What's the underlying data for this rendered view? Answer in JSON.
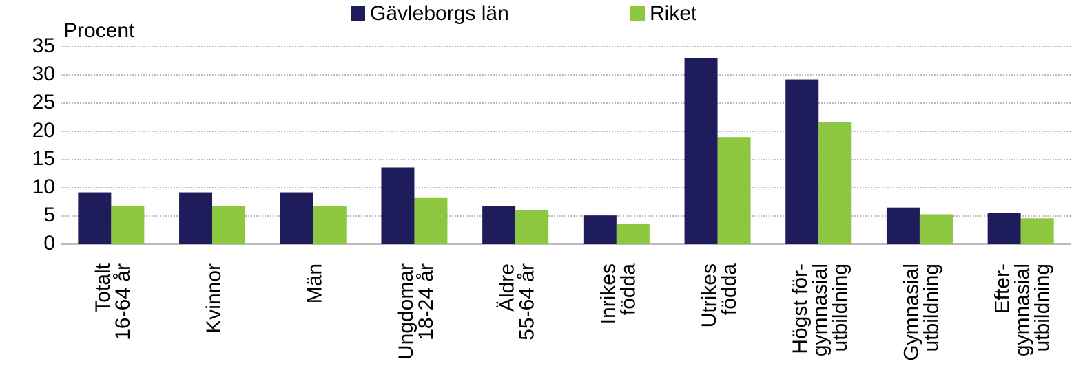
{
  "chart_data": {
    "type": "bar",
    "y_label": "Procent",
    "categories": [
      [
        "Totalt",
        "16-64 år"
      ],
      [
        "Kvinnor"
      ],
      [
        "Män"
      ],
      [
        "Ungdomar",
        "18-24 år"
      ],
      [
        "Äldre",
        "55-64 år"
      ],
      [
        "Inrikes",
        "födda"
      ],
      [
        "Utrikes",
        "födda"
      ],
      [
        "Högst för-",
        "gymnasial",
        "utbildning"
      ],
      [
        "Gymnasial",
        "utbildning"
      ],
      [
        "Efter-",
        "gymnasial",
        "utbildning"
      ]
    ],
    "series": [
      {
        "name": "Gävleborgs län",
        "color": "#1f1c5c",
        "values": [
          9.2,
          9.2,
          9.2,
          13.6,
          6.8,
          5.1,
          33.0,
          29.2,
          6.5,
          5.6
        ]
      },
      {
        "name": "Riket",
        "color": "#8dc63f",
        "values": [
          6.8,
          6.8,
          6.8,
          8.2,
          6.0,
          3.6,
          19.0,
          21.7,
          5.3,
          4.6
        ]
      }
    ],
    "ylim": [
      0,
      35
    ],
    "yticks": [
      0,
      5,
      10,
      15,
      20,
      25,
      30,
      35
    ],
    "grid": true
  }
}
